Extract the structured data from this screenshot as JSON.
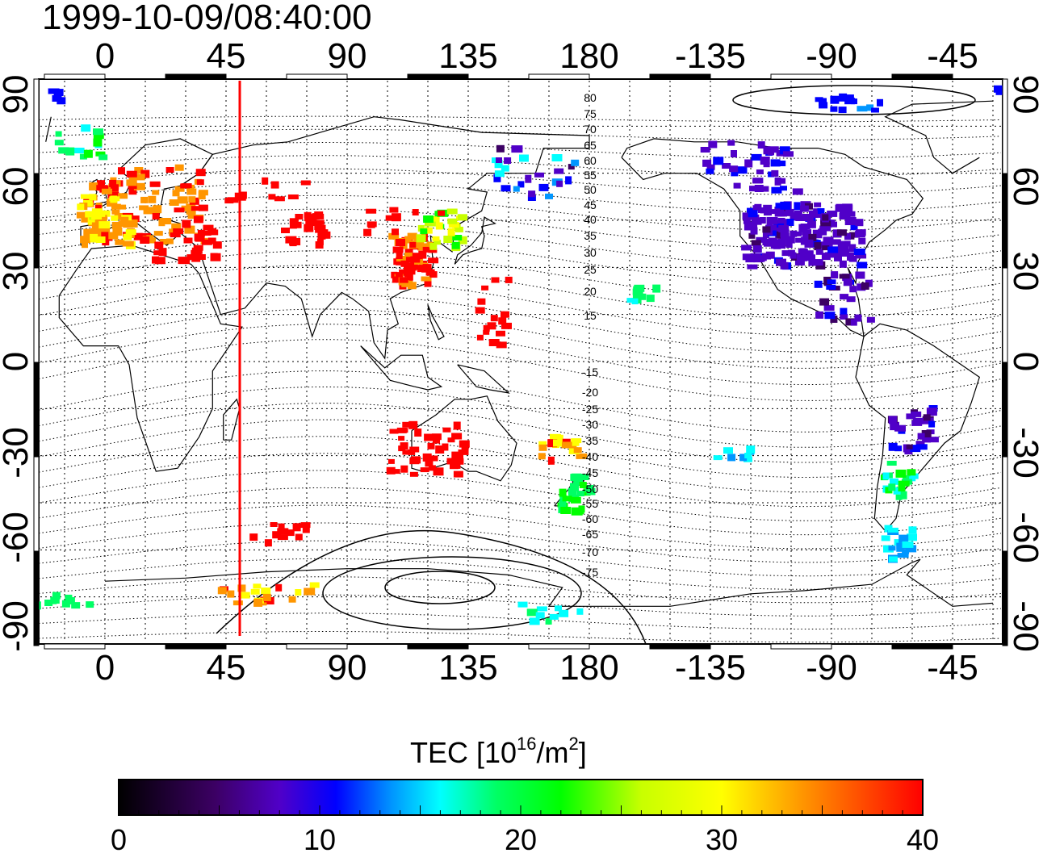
{
  "title": "1999-10-09/08:40:00",
  "map": {
    "lon_ticks": [
      "0",
      "45",
      "90",
      "135",
      "180",
      "-135",
      "-90",
      "-45"
    ],
    "lat_ticks": [
      "90",
      "60",
      "30",
      "0",
      "-30",
      "-60",
      "-90"
    ],
    "contour_labels_north": [
      "80",
      "75",
      "70",
      "65",
      "60",
      "55",
      "50",
      "45",
      "40",
      "35",
      "30",
      "25",
      "20",
      "15"
    ],
    "contour_labels_south": [
      "-15",
      "-20",
      "-25",
      "-30",
      "-35",
      "-40",
      "-45",
      "-50",
      "-55",
      "-60",
      "-65",
      "-70",
      "-75"
    ],
    "terminator_color": "#ff0000"
  },
  "colorbar": {
    "label_main": "TEC  [10",
    "label_sup1": "16",
    "label_mid": "/m",
    "label_sup2": "2",
    "label_end": "]",
    "ticks": [
      "0",
      "10",
      "20",
      "30",
      "40"
    ],
    "colors": [
      "#000000",
      "#3c0064",
      "#5000c8",
      "#0000ff",
      "#0096ff",
      "#00ffff",
      "#00ff64",
      "#00ff00",
      "#c8ff00",
      "#ffff00",
      "#ff9600",
      "#ff0000"
    ]
  }
}
